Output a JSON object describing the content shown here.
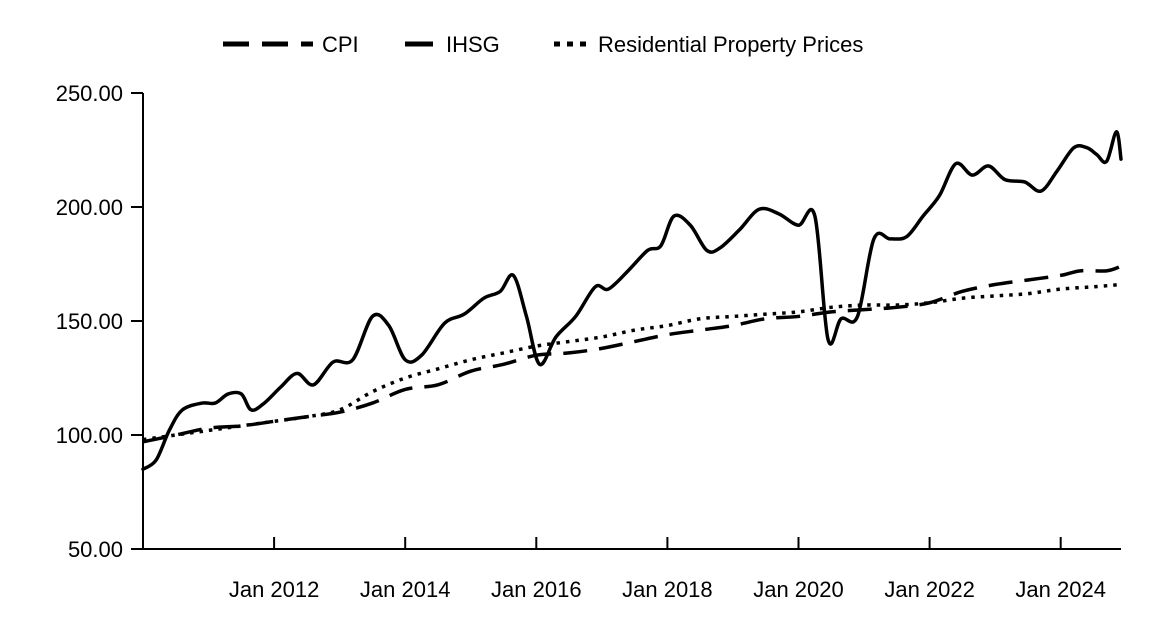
{
  "chart_data": {
    "type": "line",
    "title": "",
    "xlabel": "",
    "ylabel": "",
    "ylim": [
      50,
      250
    ],
    "xlim": [
      2010.0,
      2024.92
    ],
    "y_ticks": [
      50,
      100,
      150,
      200,
      250
    ],
    "y_tick_labels": [
      "50.00",
      "100.00",
      "150.00",
      "200.00",
      "250.00"
    ],
    "x_ticks": [
      2012,
      2014,
      2016,
      2018,
      2020,
      2022,
      2024
    ],
    "x_tick_labels": [
      "Jan 2012",
      "Jan 2014",
      "Jan 2016",
      "Jan 2018",
      "Jan 2020",
      "Jan 2022",
      "Jan 2024"
    ],
    "legend_position": "top-center",
    "series": [
      {
        "name": "CPI",
        "style": "dashed",
        "color": "#000000",
        "points": [
          [
            2010.0,
            97
          ],
          [
            2010.5,
            100
          ],
          [
            2011.0,
            103
          ],
          [
            2011.5,
            104
          ],
          [
            2012.0,
            106
          ],
          [
            2012.5,
            108
          ],
          [
            2013.0,
            110
          ],
          [
            2013.5,
            114
          ],
          [
            2014.0,
            120
          ],
          [
            2014.5,
            122
          ],
          [
            2015.0,
            128
          ],
          [
            2015.5,
            131
          ],
          [
            2016.0,
            135
          ],
          [
            2016.5,
            136
          ],
          [
            2017.0,
            138
          ],
          [
            2017.5,
            141
          ],
          [
            2018.0,
            144
          ],
          [
            2018.5,
            146
          ],
          [
            2019.0,
            148
          ],
          [
            2019.5,
            151
          ],
          [
            2020.0,
            152
          ],
          [
            2020.5,
            154
          ],
          [
            2021.0,
            155
          ],
          [
            2021.5,
            156
          ],
          [
            2022.0,
            158
          ],
          [
            2022.5,
            163
          ],
          [
            2023.0,
            166
          ],
          [
            2023.5,
            168
          ],
          [
            2024.0,
            170
          ],
          [
            2024.3,
            172
          ],
          [
            2024.7,
            172
          ],
          [
            2024.92,
            174
          ]
        ]
      },
      {
        "name": "IHSG",
        "style": "solid",
        "color": "#000000",
        "points": [
          [
            2010.0,
            85
          ],
          [
            2010.2,
            89
          ],
          [
            2010.4,
            102
          ],
          [
            2010.6,
            111
          ],
          [
            2010.9,
            114
          ],
          [
            2011.1,
            114
          ],
          [
            2011.3,
            118
          ],
          [
            2011.5,
            118
          ],
          [
            2011.65,
            111
          ],
          [
            2011.85,
            114
          ],
          [
            2012.1,
            121
          ],
          [
            2012.35,
            127
          ],
          [
            2012.6,
            122
          ],
          [
            2012.9,
            132
          ],
          [
            2013.2,
            133
          ],
          [
            2013.5,
            152
          ],
          [
            2013.75,
            148
          ],
          [
            2014.0,
            133
          ],
          [
            2014.25,
            135
          ],
          [
            2014.6,
            149
          ],
          [
            2014.9,
            153
          ],
          [
            2015.2,
            160
          ],
          [
            2015.45,
            163
          ],
          [
            2015.65,
            170
          ],
          [
            2015.85,
            152
          ],
          [
            2016.05,
            131
          ],
          [
            2016.3,
            143
          ],
          [
            2016.6,
            152
          ],
          [
            2016.9,
            165
          ],
          [
            2017.1,
            164
          ],
          [
            2017.4,
            172
          ],
          [
            2017.7,
            181
          ],
          [
            2017.9,
            183
          ],
          [
            2018.1,
            196
          ],
          [
            2018.35,
            192
          ],
          [
            2018.6,
            181
          ],
          [
            2018.8,
            182
          ],
          [
            2019.1,
            190
          ],
          [
            2019.4,
            199
          ],
          [
            2019.7,
            197
          ],
          [
            2020.0,
            192
          ],
          [
            2020.25,
            196
          ],
          [
            2020.45,
            142
          ],
          [
            2020.65,
            151
          ],
          [
            2020.9,
            152
          ],
          [
            2021.15,
            186
          ],
          [
            2021.4,
            186
          ],
          [
            2021.65,
            187
          ],
          [
            2021.9,
            196
          ],
          [
            2022.15,
            205
          ],
          [
            2022.4,
            219
          ],
          [
            2022.65,
            214
          ],
          [
            2022.9,
            218
          ],
          [
            2023.15,
            212
          ],
          [
            2023.45,
            211
          ],
          [
            2023.7,
            207
          ],
          [
            2023.95,
            216
          ],
          [
            2024.2,
            226
          ],
          [
            2024.4,
            226
          ],
          [
            2024.55,
            223
          ],
          [
            2024.7,
            220
          ],
          [
            2024.85,
            233
          ],
          [
            2024.92,
            221
          ]
        ]
      },
      {
        "name": "Residential Property Prices",
        "style": "dotted",
        "color": "#000000",
        "points": [
          [
            2010.0,
            98
          ],
          [
            2010.5,
            100
          ],
          [
            2011.0,
            102
          ],
          [
            2011.5,
            104
          ],
          [
            2012.0,
            106
          ],
          [
            2012.5,
            108
          ],
          [
            2013.0,
            111
          ],
          [
            2013.5,
            119
          ],
          [
            2014.0,
            125
          ],
          [
            2014.5,
            129
          ],
          [
            2015.0,
            133
          ],
          [
            2015.5,
            136
          ],
          [
            2016.0,
            139
          ],
          [
            2016.5,
            141
          ],
          [
            2017.0,
            143
          ],
          [
            2017.5,
            146
          ],
          [
            2018.0,
            148
          ],
          [
            2018.5,
            151
          ],
          [
            2019.0,
            152
          ],
          [
            2019.5,
            153
          ],
          [
            2020.0,
            154
          ],
          [
            2020.5,
            156
          ],
          [
            2021.0,
            157
          ],
          [
            2021.5,
            157
          ],
          [
            2022.0,
            158
          ],
          [
            2022.5,
            160
          ],
          [
            2023.0,
            161
          ],
          [
            2023.5,
            162
          ],
          [
            2024.0,
            164
          ],
          [
            2024.5,
            165
          ],
          [
            2024.92,
            166
          ]
        ]
      }
    ]
  }
}
